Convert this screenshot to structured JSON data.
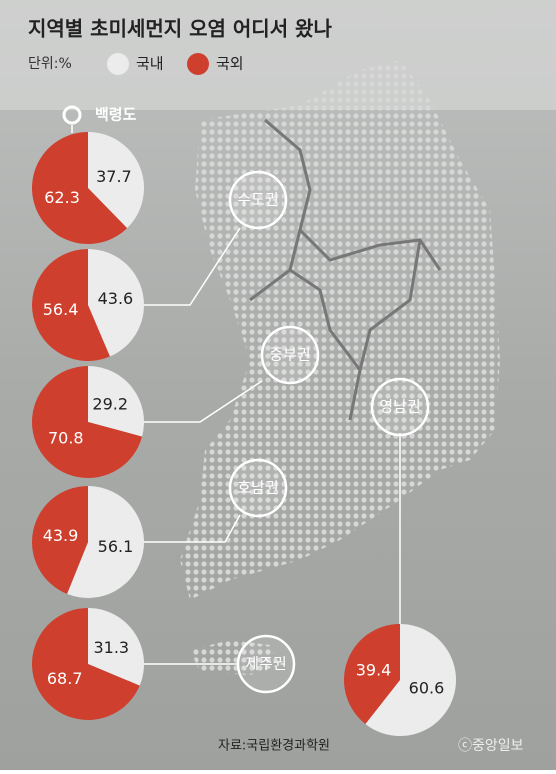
{
  "title": "지역별 초미세먼지 오염 어디서 왔나",
  "unit": "단위:%",
  "legend": [
    {
      "name": "국내",
      "color": "#ececec"
    },
    {
      "name": "국외",
      "color": "#cf3f2e"
    }
  ],
  "chart_data": [
    {
      "type": "pie",
      "label": "백령도",
      "values": [
        37.7,
        62.3
      ]
    },
    {
      "type": "pie",
      "label": "수도권",
      "values": [
        43.6,
        56.4
      ]
    },
    {
      "type": "pie",
      "label": "중부권",
      "values": [
        29.2,
        70.8
      ]
    },
    {
      "type": "pie",
      "label": "호남권",
      "values": [
        56.1,
        43.9
      ]
    },
    {
      "type": "pie",
      "label": "제주권",
      "values": [
        31.3,
        68.7
      ]
    },
    {
      "type": "pie",
      "label": "영남권",
      "values": [
        60.6,
        39.4
      ]
    }
  ],
  "source": "자료:국립환경과학원",
  "credit": "ⓒ중앙일보"
}
